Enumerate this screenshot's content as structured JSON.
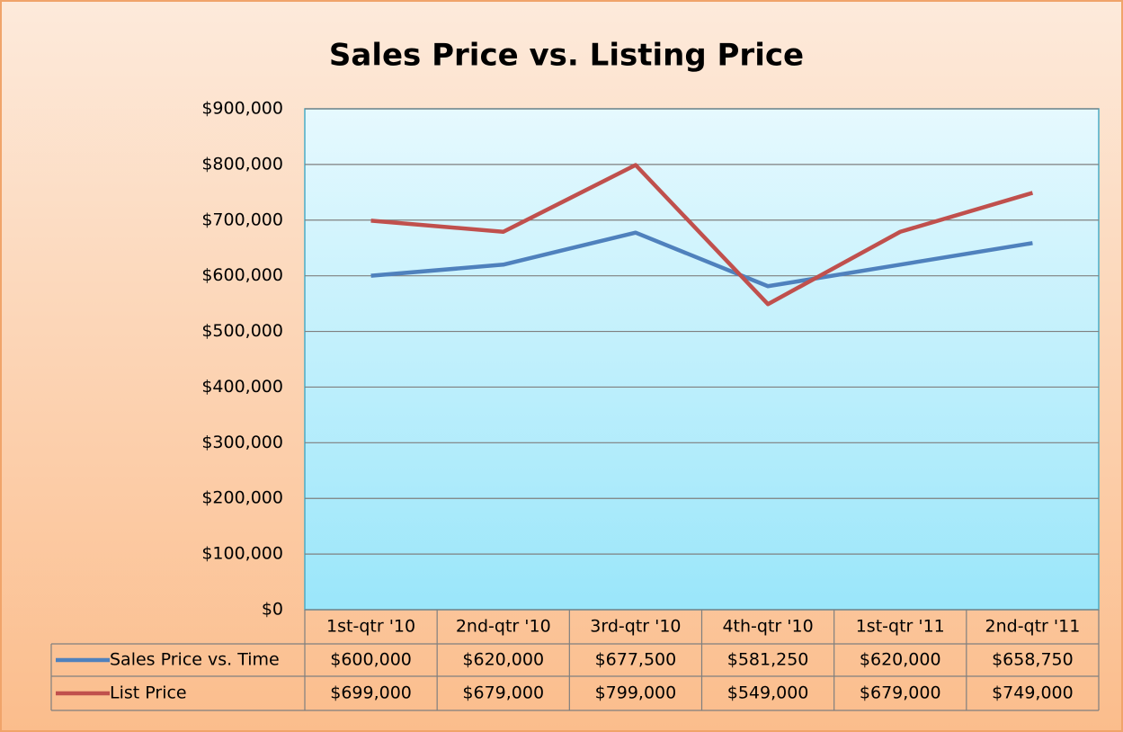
{
  "chart_data": {
    "type": "line",
    "title": "Sales Price vs. Listing Price",
    "categories": [
      "1st-qtr '10",
      "2nd-qtr '10",
      "3rd-qtr '10",
      "4th-qtr '10",
      "1st-qtr '11",
      "2nd-qtr '11"
    ],
    "series": [
      {
        "name": "Sales Price vs. Time",
        "color": "#4f81bd",
        "values": [
          600000,
          620000,
          677500,
          581250,
          620000,
          658750
        ],
        "value_labels": [
          "$600,000",
          "$620,000",
          "$677,500",
          "$581,250",
          "$620,000",
          "$658,750"
        ]
      },
      {
        "name": "List Price",
        "color": "#c0504d",
        "values": [
          699000,
          679000,
          799000,
          549000,
          679000,
          749000
        ],
        "value_labels": [
          "$699,000",
          "$679,000",
          "$799,000",
          "$549,000",
          "$679,000",
          "$749,000"
        ]
      }
    ],
    "ylim": [
      0,
      900000
    ],
    "yticks": [
      {
        "value": 0,
        "label": "$0"
      },
      {
        "value": 100000,
        "label": "$100,000"
      },
      {
        "value": 200000,
        "label": "$200,000"
      },
      {
        "value": 300000,
        "label": "$300,000"
      },
      {
        "value": 400000,
        "label": "$400,000"
      },
      {
        "value": 500000,
        "label": "$500,000"
      },
      {
        "value": 600000,
        "label": "$600,000"
      },
      {
        "value": 700000,
        "label": "$700,000"
      },
      {
        "value": 800000,
        "label": "$800,000"
      },
      {
        "value": 900000,
        "label": "$900,000"
      }
    ],
    "grid": true
  }
}
